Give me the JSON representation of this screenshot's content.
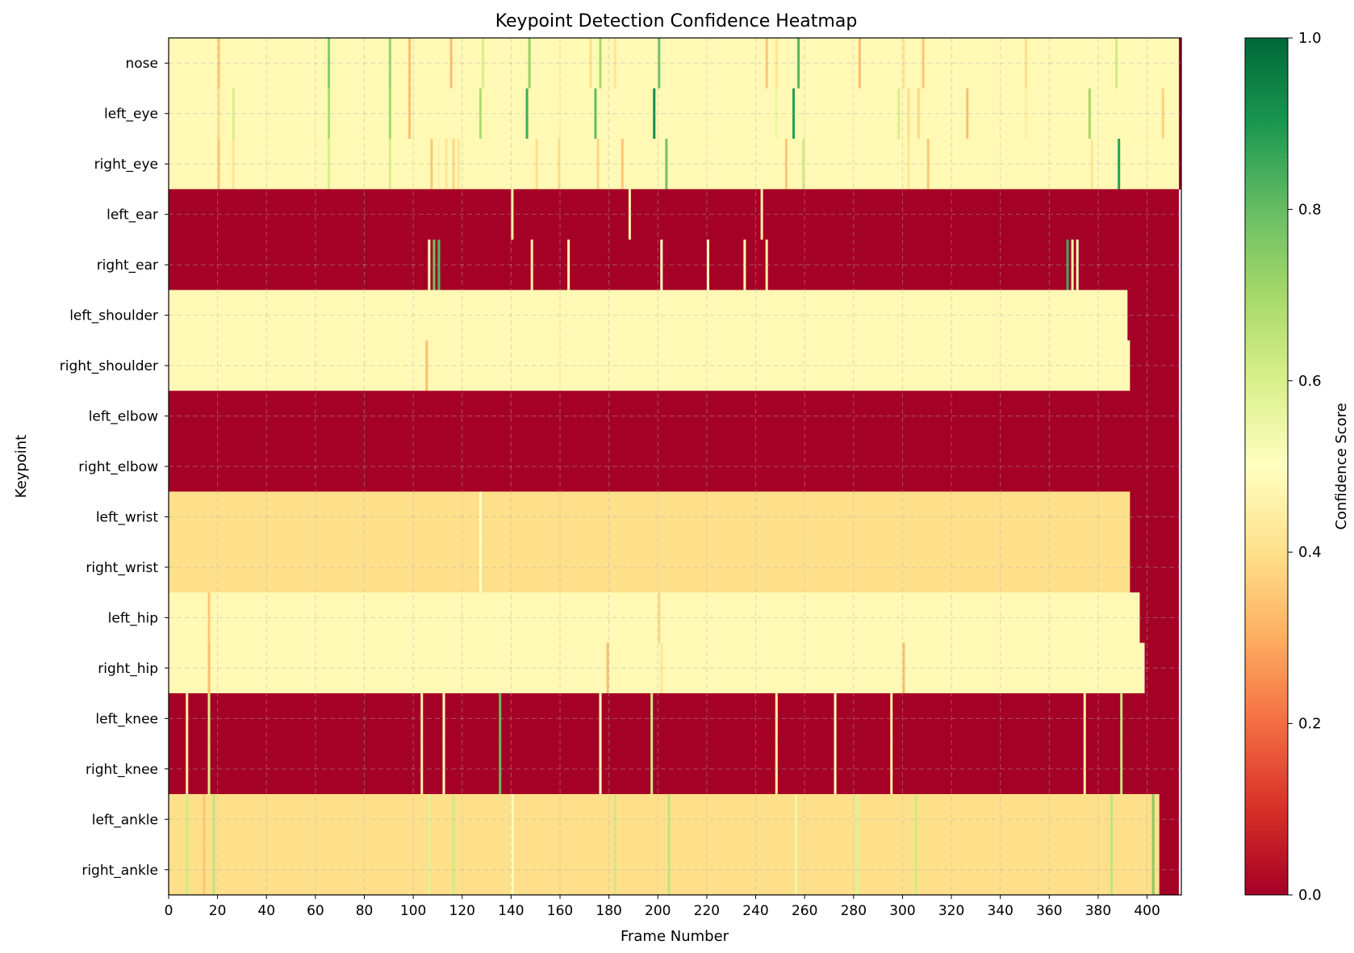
{
  "chart_data": {
    "type": "heatmap",
    "title": "Keypoint Detection Confidence Heatmap",
    "xlabel": "Frame Number",
    "ylabel": "Keypoint",
    "colorbar_label": "Confidence Score",
    "colormap": "RdYlGn",
    "colormap_stops": [
      "#a50026",
      "#d73027",
      "#f46d43",
      "#fdae61",
      "#fee08b",
      "#ffffbf",
      "#d9ef8b",
      "#a6d96a",
      "#66bd63",
      "#1a9850",
      "#006837"
    ],
    "x_range": [
      0,
      414
    ],
    "x_ticks": [
      0,
      20,
      40,
      60,
      80,
      100,
      120,
      140,
      160,
      180,
      200,
      220,
      240,
      260,
      280,
      300,
      320,
      340,
      360,
      380,
      400
    ],
    "colorbar_range": [
      0.0,
      1.0
    ],
    "colorbar_ticks": [
      0.0,
      0.2,
      0.4,
      0.6,
      0.8,
      1.0
    ],
    "grid": true,
    "rows": [
      {
        "keypoint": "nose",
        "segments": [
          [
            0,
            413,
            0.48
          ]
        ],
        "spikes": [
          [
            20,
            0.35
          ],
          [
            65,
            0.75
          ],
          [
            90,
            0.72
          ],
          [
            98,
            0.33
          ],
          [
            115,
            0.33
          ],
          [
            128,
            0.6
          ],
          [
            147,
            0.72
          ],
          [
            172,
            0.4
          ],
          [
            176,
            0.7
          ],
          [
            182,
            0.42
          ],
          [
            200,
            0.78
          ],
          [
            244,
            0.35
          ],
          [
            248,
            0.42
          ],
          [
            257,
            0.82
          ],
          [
            282,
            0.33
          ],
          [
            300,
            0.42
          ],
          [
            308,
            0.35
          ],
          [
            350,
            0.4
          ],
          [
            387,
            0.62
          ],
          [
            413,
            0.0
          ]
        ]
      },
      {
        "keypoint": "left_eye",
        "segments": [
          [
            0,
            413,
            0.48
          ]
        ],
        "spikes": [
          [
            20,
            0.4
          ],
          [
            26,
            0.6
          ],
          [
            65,
            0.68
          ],
          [
            90,
            0.7
          ],
          [
            98,
            0.33
          ],
          [
            127,
            0.68
          ],
          [
            146,
            0.85
          ],
          [
            174,
            0.8
          ],
          [
            198,
            0.92
          ],
          [
            248,
            0.55
          ],
          [
            255,
            0.88
          ],
          [
            298,
            0.6
          ],
          [
            302,
            0.4
          ],
          [
            306,
            0.38
          ],
          [
            326,
            0.33
          ],
          [
            350,
            0.45
          ],
          [
            376,
            0.7
          ],
          [
            406,
            0.37
          ],
          [
            413,
            0.0
          ]
        ]
      },
      {
        "keypoint": "right_eye",
        "segments": [
          [
            0,
            413,
            0.48
          ]
        ],
        "spikes": [
          [
            20,
            0.35
          ],
          [
            26,
            0.42
          ],
          [
            65,
            0.6
          ],
          [
            90,
            0.6
          ],
          [
            107,
            0.35
          ],
          [
            110,
            0.45
          ],
          [
            113,
            0.42
          ],
          [
            116,
            0.38
          ],
          [
            118,
            0.42
          ],
          [
            150,
            0.4
          ],
          [
            159,
            0.4
          ],
          [
            175,
            0.38
          ],
          [
            185,
            0.35
          ],
          [
            203,
            0.78
          ],
          [
            252,
            0.35
          ],
          [
            259,
            0.62
          ],
          [
            302,
            0.42
          ],
          [
            310,
            0.35
          ],
          [
            377,
            0.42
          ],
          [
            388,
            0.88
          ],
          [
            413,
            0.0
          ]
        ]
      },
      {
        "keypoint": "left_ear",
        "segments": [
          [
            0,
            413,
            0.0
          ]
        ],
        "spikes": [
          [
            140,
            0.45
          ],
          [
            188,
            0.45
          ],
          [
            242,
            0.45
          ]
        ]
      },
      {
        "keypoint": "right_ear",
        "segments": [
          [
            0,
            413,
            0.0
          ]
        ],
        "spikes": [
          [
            106,
            0.5
          ],
          [
            108,
            0.78
          ],
          [
            110,
            0.82
          ],
          [
            148,
            0.45
          ],
          [
            163,
            0.48
          ],
          [
            201,
            0.5
          ],
          [
            220,
            0.48
          ],
          [
            235,
            0.48
          ],
          [
            244,
            0.45
          ],
          [
            367,
            0.85
          ],
          [
            369,
            0.55
          ],
          [
            371,
            0.52
          ]
        ]
      },
      {
        "keypoint": "left_shoulder",
        "segments": [
          [
            0,
            392,
            0.48
          ],
          [
            392,
            413,
            0.0
          ]
        ],
        "spikes": []
      },
      {
        "keypoint": "right_shoulder",
        "segments": [
          [
            0,
            393,
            0.48
          ],
          [
            393,
            413,
            0.0
          ]
        ],
        "spikes": [
          [
            105,
            0.33
          ]
        ]
      },
      {
        "keypoint": "left_elbow",
        "segments": [
          [
            0,
            413,
            0.0
          ]
        ],
        "spikes": []
      },
      {
        "keypoint": "right_elbow",
        "segments": [
          [
            0,
            413,
            0.0
          ]
        ],
        "spikes": []
      },
      {
        "keypoint": "left_wrist",
        "segments": [
          [
            0,
            393,
            0.4
          ],
          [
            393,
            413,
            0.0
          ]
        ],
        "spikes": [
          [
            127,
            0.5
          ]
        ]
      },
      {
        "keypoint": "right_wrist",
        "segments": [
          [
            0,
            393,
            0.4
          ],
          [
            393,
            413,
            0.0
          ]
        ],
        "spikes": [
          [
            127,
            0.5
          ]
        ]
      },
      {
        "keypoint": "left_hip",
        "segments": [
          [
            0,
            397,
            0.48
          ],
          [
            397,
            413,
            0.0
          ]
        ],
        "spikes": [
          [
            16,
            0.35
          ],
          [
            137,
            0.52
          ],
          [
            200,
            0.38
          ]
        ]
      },
      {
        "keypoint": "right_hip",
        "segments": [
          [
            0,
            399,
            0.48
          ],
          [
            399,
            413,
            0.0
          ]
        ],
        "spikes": [
          [
            16,
            0.33
          ],
          [
            179,
            0.33
          ],
          [
            201,
            0.42
          ],
          [
            300,
            0.33
          ]
        ]
      },
      {
        "keypoint": "left_knee",
        "segments": [
          [
            0,
            413,
            0.0
          ]
        ],
        "spikes": [
          [
            7,
            0.45
          ],
          [
            16,
            0.6
          ],
          [
            103,
            0.45
          ],
          [
            112,
            0.5
          ],
          [
            135,
            0.8
          ],
          [
            176,
            0.5
          ],
          [
            197,
            0.62
          ],
          [
            248,
            0.45
          ],
          [
            272,
            0.5
          ],
          [
            295,
            0.45
          ],
          [
            374,
            0.45
          ],
          [
            389,
            0.65
          ]
        ]
      },
      {
        "keypoint": "right_knee",
        "segments": [
          [
            0,
            413,
            0.0
          ]
        ],
        "spikes": [
          [
            7,
            0.45
          ],
          [
            16,
            0.6
          ],
          [
            103,
            0.45
          ],
          [
            112,
            0.5
          ],
          [
            135,
            0.8
          ],
          [
            176,
            0.5
          ],
          [
            197,
            0.62
          ],
          [
            248,
            0.45
          ],
          [
            272,
            0.5
          ],
          [
            295,
            0.45
          ],
          [
            374,
            0.45
          ],
          [
            389,
            0.65
          ]
        ]
      },
      {
        "keypoint": "left_ankle",
        "segments": [
          [
            0,
            405,
            0.4
          ],
          [
            405,
            413,
            0.0
          ]
        ],
        "spikes": [
          [
            7,
            0.62
          ],
          [
            14,
            0.35
          ],
          [
            18,
            0.65
          ],
          [
            106,
            0.58
          ],
          [
            116,
            0.62
          ],
          [
            140,
            0.5
          ],
          [
            182,
            0.62
          ],
          [
            204,
            0.65
          ],
          [
            256,
            0.55
          ],
          [
            281,
            0.58
          ],
          [
            305,
            0.62
          ],
          [
            385,
            0.65
          ],
          [
            402,
            0.75
          ]
        ]
      },
      {
        "keypoint": "right_ankle",
        "segments": [
          [
            0,
            405,
            0.4
          ],
          [
            405,
            413,
            0.0
          ]
        ],
        "spikes": [
          [
            7,
            0.62
          ],
          [
            14,
            0.35
          ],
          [
            18,
            0.65
          ],
          [
            106,
            0.58
          ],
          [
            116,
            0.62
          ],
          [
            140,
            0.5
          ],
          [
            182,
            0.62
          ],
          [
            204,
            0.65
          ],
          [
            256,
            0.55
          ],
          [
            281,
            0.58
          ],
          [
            305,
            0.62
          ],
          [
            385,
            0.65
          ],
          [
            402,
            0.75
          ]
        ]
      }
    ]
  }
}
